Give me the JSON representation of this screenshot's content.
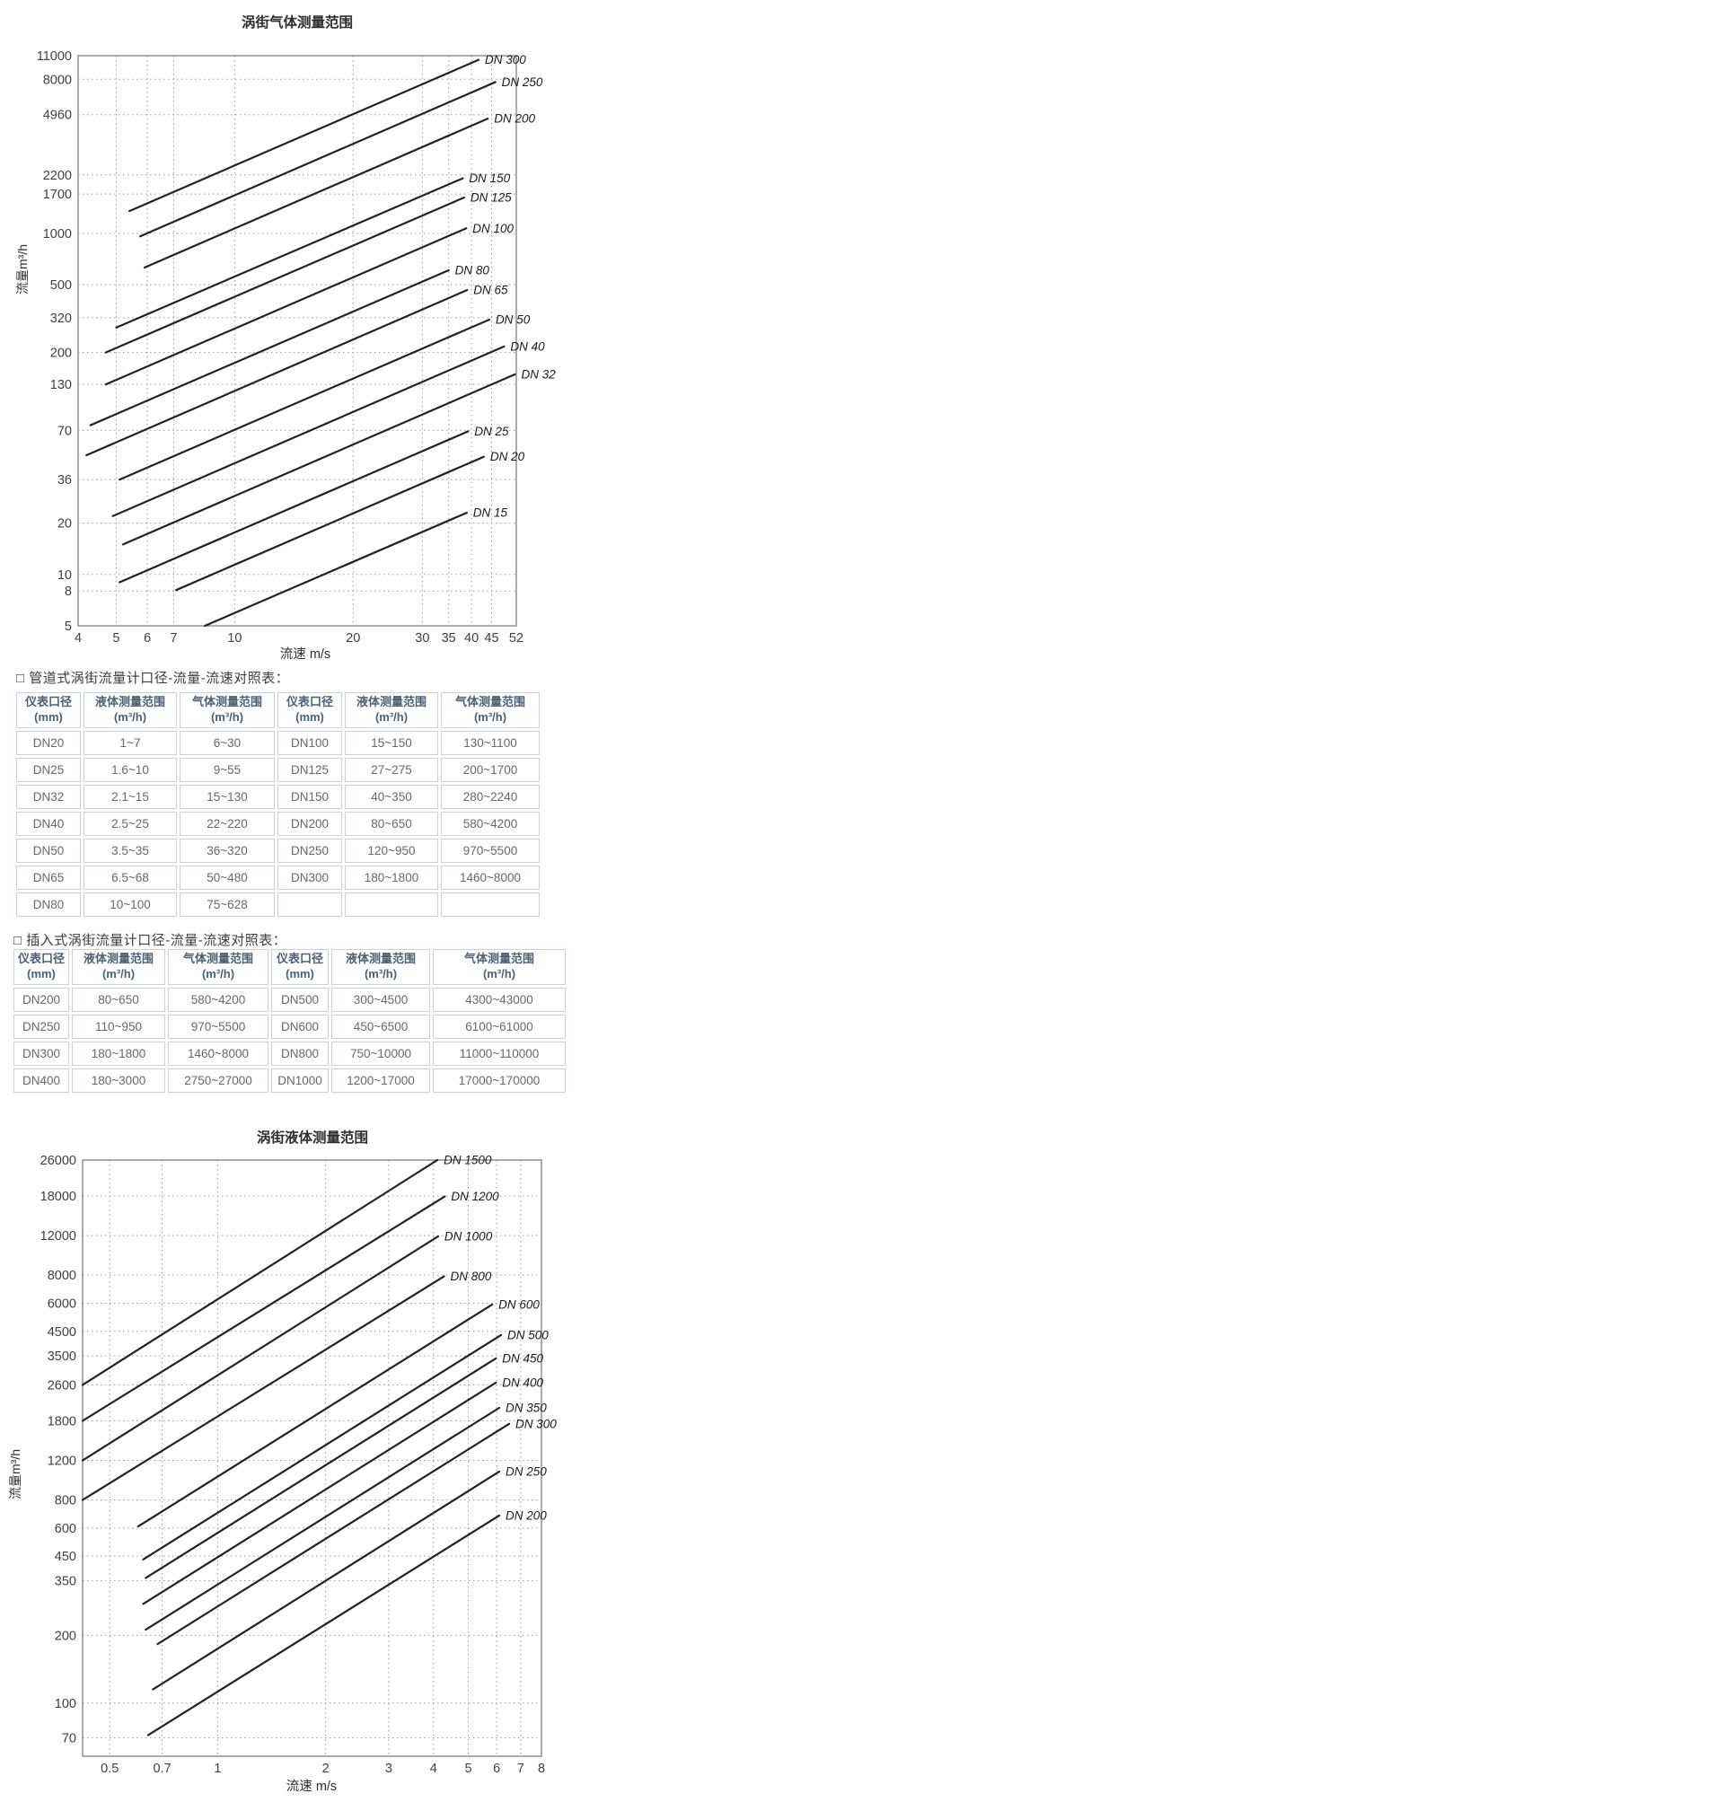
{
  "sections": {
    "pipeline_table_title": "□ 管道式涡街流量计口径-流量-流速对照表：",
    "insertion_table_title": "□ 插入式涡街流量计口径-流量-流速对照表："
  },
  "chart_data": [
    {
      "id": "gas",
      "type": "line",
      "title": "涡街气体测量范围",
      "xlabel": "流速 m/s",
      "ylabel": "流量m³/h",
      "x_scale": "log",
      "y_scale": "log",
      "x_range": [
        4,
        52
      ],
      "y_range": [
        5,
        11000
      ],
      "x_ticks": [
        4,
        5,
        6,
        7,
        10,
        20,
        30,
        35,
        40,
        45,
        52
      ],
      "y_ticks": [
        11000,
        8000,
        4960,
        2200,
        1700,
        1000,
        500,
        320,
        200,
        130,
        70,
        36,
        20,
        10,
        8,
        5
      ],
      "grid": true,
      "legend_position": "line-ends",
      "series": [
        {
          "name": "DN 300",
          "points": [
            [
              5.4,
              1350
            ],
            [
              41.7,
              10400
            ]
          ]
        },
        {
          "name": "DN 250",
          "points": [
            [
              5.75,
              960
            ],
            [
              46,
              7700
            ]
          ]
        },
        {
          "name": "DN 200",
          "points": [
            [
              5.9,
              630
            ],
            [
              44,
              4700
            ]
          ]
        },
        {
          "name": "DN 150",
          "points": [
            [
              5.0,
              280
            ],
            [
              38,
              2100
            ]
          ]
        },
        {
          "name": "DN 125",
          "points": [
            [
              4.7,
              200
            ],
            [
              38.3,
              1620
            ]
          ]
        },
        {
          "name": "DN 100",
          "points": [
            [
              4.7,
              130
            ],
            [
              38.8,
              1070
            ]
          ]
        },
        {
          "name": "DN 80",
          "points": [
            [
              4.3,
              75
            ],
            [
              35,
              607
            ]
          ]
        },
        {
          "name": "DN 65",
          "points": [
            [
              4.2,
              50
            ],
            [
              39,
              465
            ]
          ]
        },
        {
          "name": "DN 50",
          "points": [
            [
              5.1,
              36
            ],
            [
              44.4,
              312
            ]
          ]
        },
        {
          "name": "DN 40",
          "points": [
            [
              4.9,
              22
            ],
            [
              48.4,
              217
            ]
          ]
        },
        {
          "name": "DN 32",
          "points": [
            [
              5.2,
              15
            ],
            [
              51.6,
              149
            ]
          ]
        },
        {
          "name": "DN 25",
          "points": [
            [
              5.1,
              9
            ],
            [
              39.2,
              69
            ]
          ]
        },
        {
          "name": "DN 20",
          "points": [
            [
              7.1,
              8.1
            ],
            [
              43,
              49
            ]
          ]
        },
        {
          "name": "DN 15",
          "points": [
            [
              8.4,
              5
            ],
            [
              38.9,
              23
            ]
          ]
        }
      ]
    },
    {
      "id": "liquid",
      "type": "line",
      "title": "涡街液体测量范围",
      "xlabel": "流速 m/s",
      "ylabel": "流量m³/h",
      "x_scale": "log",
      "y_scale": "log",
      "x_range": [
        0.42,
        8
      ],
      "y_range": [
        58,
        26000
      ],
      "x_ticks": [
        0.5,
        0.7,
        1,
        2,
        3,
        4,
        5,
        6,
        7,
        8
      ],
      "y_ticks": [
        26000,
        18000,
        12000,
        8000,
        6000,
        4500,
        3500,
        2600,
        1800,
        1200,
        800,
        600,
        450,
        350,
        200,
        100,
        70
      ],
      "grid": true,
      "legend_position": "line-ends",
      "series": [
        {
          "name": "DN 1500",
          "points": [
            [
              0.42,
              2600
            ],
            [
              4.1,
              26000
            ]
          ]
        },
        {
          "name": "DN 1200",
          "points": [
            [
              0.42,
              1800
            ],
            [
              4.3,
              17900
            ]
          ]
        },
        {
          "name": "DN 1000",
          "points": [
            [
              0.42,
              1200
            ],
            [
              4.12,
              11900
            ]
          ]
        },
        {
          "name": "DN 800",
          "points": [
            [
              0.42,
              800
            ],
            [
              4.28,
              7900
            ]
          ]
        },
        {
          "name": "DN 600",
          "points": [
            [
              0.6,
              610
            ],
            [
              5.83,
              5920
            ]
          ]
        },
        {
          "name": "DN 500",
          "points": [
            [
              0.62,
              435
            ],
            [
              6.17,
              4330
            ]
          ]
        },
        {
          "name": "DN 450",
          "points": [
            [
              0.63,
              360
            ],
            [
              5.97,
              3410
            ]
          ]
        },
        {
          "name": "DN 400",
          "points": [
            [
              0.62,
              276
            ],
            [
              5.97,
              2660
            ]
          ]
        },
        {
          "name": "DN 350",
          "points": [
            [
              0.63,
              212
            ],
            [
              6.1,
              2055
            ]
          ]
        },
        {
          "name": "DN 300",
          "points": [
            [
              0.68,
              183
            ],
            [
              6.5,
              1745
            ]
          ]
        },
        {
          "name": "DN 250",
          "points": [
            [
              0.66,
              115
            ],
            [
              6.1,
              1070
            ]
          ]
        },
        {
          "name": "DN 200",
          "points": [
            [
              0.64,
              72
            ],
            [
              6.1,
              682
            ]
          ]
        }
      ]
    }
  ],
  "tables": [
    {
      "name": "pipeline",
      "headers": [
        [
          "仪表口径",
          "(mm)"
        ],
        [
          "液体测量范围",
          "(m³/h)"
        ],
        [
          "气体测量范围",
          "(m³/h)"
        ],
        [
          "仪表口径",
          "(mm)"
        ],
        [
          "液体测量范围",
          "(m³/h)"
        ],
        [
          "气体测量范围",
          "(m³/h)"
        ]
      ],
      "rows": [
        [
          "DN20",
          "1~7",
          "6~30",
          "DN100",
          "15~150",
          "130~1100"
        ],
        [
          "DN25",
          "1.6~10",
          "9~55",
          "DN125",
          "27~275",
          "200~1700"
        ],
        [
          "DN32",
          "2.1~15",
          "15~130",
          "DN150",
          "40~350",
          "280~2240"
        ],
        [
          "DN40",
          "2.5~25",
          "22~220",
          "DN200",
          "80~650",
          "580~4200"
        ],
        [
          "DN50",
          "3.5~35",
          "36~320",
          "DN250",
          "120~950",
          "970~5500"
        ],
        [
          "DN65",
          "6.5~68",
          "50~480",
          "DN300",
          "180~1800",
          "1460~8000"
        ],
        [
          "DN80",
          "10~100",
          "75~628",
          "",
          "",
          ""
        ]
      ]
    },
    {
      "name": "insertion",
      "headers": [
        [
          "仪表口径",
          "(mm)"
        ],
        [
          "液体测量范围",
          "(m³/h)"
        ],
        [
          "气体测量范围",
          "(m³/h)"
        ],
        [
          "仪表口径",
          "(mm)"
        ],
        [
          "液体测量范围",
          "(m³/h)"
        ],
        [
          "气体测量范围",
          "(m³/h)"
        ]
      ],
      "rows": [
        [
          "DN200",
          "80~650",
          "580~4200",
          "DN500",
          "300~4500",
          "4300~43000"
        ],
        [
          "DN250",
          "110~950",
          "970~5500",
          "DN600",
          "450~6500",
          "6100~61000"
        ],
        [
          "DN300",
          "180~1800",
          "1460~8000",
          "DN800",
          "750~10000",
          "11000~110000"
        ],
        [
          "DN400",
          "180~3000",
          "2750~27000",
          "DN1000",
          "1200~17000",
          "17000~170000"
        ]
      ]
    }
  ],
  "colors": {
    "series_line": "#222222",
    "grid": "#9b9b9b",
    "plot_border": "#8a8a8a",
    "tick_text": "#3f3f3f",
    "title_text": "#2e2e2e",
    "dn_label_text": "#1a1a1a",
    "header_text": "#4e6172",
    "cell_text": "#686868",
    "cell_border": "#c9d2d9"
  }
}
